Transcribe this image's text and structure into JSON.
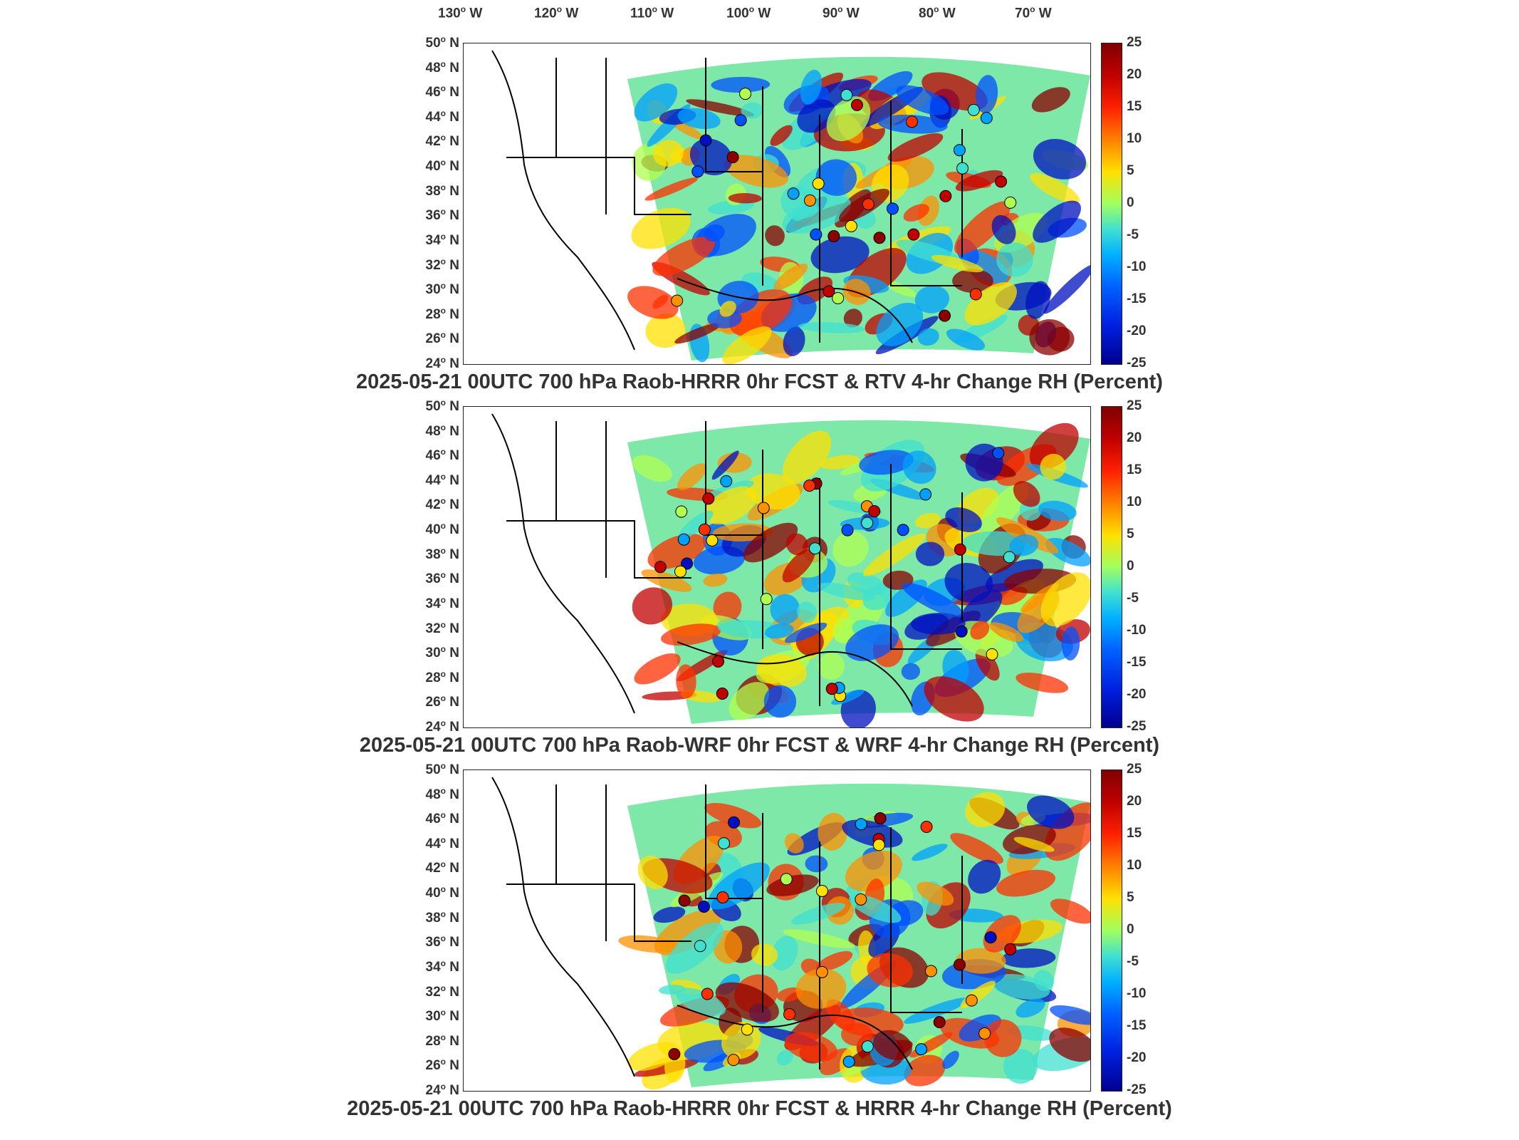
{
  "longitude_labels": [
    "130",
    "120",
    "110",
    "100",
    "90",
    "80",
    "70"
  ],
  "longitude_suffix": "W",
  "latitude_labels": [
    "50",
    "48",
    "46",
    "44",
    "42",
    "40",
    "38",
    "36",
    "34",
    "32",
    "30",
    "28",
    "26",
    "24"
  ],
  "latitude_suffix": "N",
  "degree_symbol": "o",
  "colorbar_ticks": [
    "25",
    "20",
    "15",
    "10",
    "5",
    "0",
    "-5",
    "-10",
    "-15",
    "-20",
    "-25"
  ],
  "panels": [
    {
      "title": "2025-05-21 00UTC 700 hPa Raob-HRRR 0hr FCST & RTV 4-hr Change RH (Percent)"
    },
    {
      "title": "2025-05-21 00UTC 700 hPa Raob-WRF 0hr FCST & WRF 4-hr Change RH (Percent)"
    },
    {
      "title": "2025-05-21 00UTC 700 hPa Raob-HRRR 0hr FCST & HRRR 4-hr Change RH (Percent)"
    }
  ],
  "colors": {
    "max": "#800000",
    "zero": "#a0ff60",
    "min": "#000090",
    "coastline": "#000000"
  }
}
